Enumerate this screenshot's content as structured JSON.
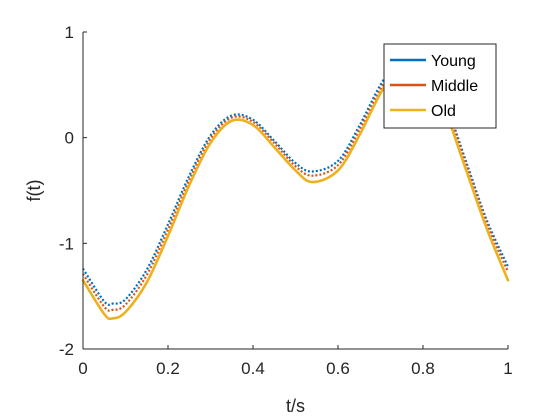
{
  "chart_data": {
    "type": "line",
    "title": "",
    "xlabel": "t/s",
    "ylabel": "f(t)",
    "xlim": [
      0,
      1
    ],
    "ylim": [
      -2,
      1
    ],
    "x_ticks": [
      0,
      0.2,
      0.4,
      0.6,
      0.8,
      1
    ],
    "x_tick_labels": [
      "0",
      "0.2",
      "0.4",
      "0.6",
      "0.8",
      "1"
    ],
    "y_ticks": [
      -2,
      -1,
      0,
      1
    ],
    "y_tick_labels": [
      "-2",
      "-1",
      "0",
      "1"
    ],
    "grid": false,
    "legend_position": "top-right",
    "x": [
      0,
      0.05,
      0.07,
      0.1,
      0.15,
      0.2,
      0.25,
      0.3,
      0.35,
      0.4,
      0.45,
      0.5,
      0.54,
      0.6,
      0.65,
      0.7,
      0.75,
      0.8,
      0.85,
      0.9,
      0.95,
      1
    ],
    "series": [
      {
        "name": "Young",
        "color": "#0072BD",
        "style": "dotted",
        "values": [
          -1.24,
          -1.55,
          -1.57,
          -1.53,
          -1.25,
          -0.82,
          -0.36,
          0.02,
          0.21,
          0.17,
          -0.03,
          -0.24,
          -0.32,
          -0.22,
          0.11,
          0.5,
          0.78,
          0.76,
          0.36,
          -0.21,
          -0.78,
          -1.22
        ]
      },
      {
        "name": "Middle",
        "color": "#D95319",
        "style": "dotted",
        "values": [
          -1.29,
          -1.6,
          -1.63,
          -1.58,
          -1.3,
          -0.87,
          -0.4,
          -0.01,
          0.19,
          0.15,
          -0.05,
          -0.27,
          -0.36,
          -0.26,
          0.07,
          0.46,
          0.74,
          0.72,
          0.33,
          -0.24,
          -0.81,
          -1.27
        ]
      },
      {
        "name": "Old",
        "color": "#EDB120",
        "style": "solid",
        "values": [
          -1.35,
          -1.67,
          -1.71,
          -1.65,
          -1.37,
          -0.93,
          -0.45,
          -0.05,
          0.16,
          0.12,
          -0.09,
          -0.31,
          -0.42,
          -0.31,
          0.02,
          0.42,
          0.7,
          0.68,
          0.28,
          -0.29,
          -0.86,
          -1.35
        ]
      }
    ]
  }
}
